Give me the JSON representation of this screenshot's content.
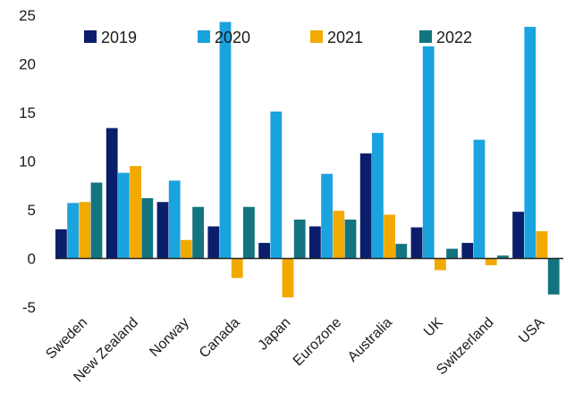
{
  "chart_data": {
    "type": "bar",
    "title": "",
    "xlabel": "",
    "ylabel": "",
    "ylim": [
      -5,
      25
    ],
    "yticks": [
      -5,
      0,
      5,
      10,
      15,
      20,
      25
    ],
    "grid": false,
    "legend": {
      "placement": "top"
    },
    "categories": [
      "Sweden",
      "New Zealand",
      "Norway",
      "Canada",
      "Japan",
      "Eurozone",
      "Australia",
      "UK",
      "Switzerland",
      "USA"
    ],
    "series": [
      {
        "name": "2019",
        "color": "#0b1e6b",
        "values": [
          3.0,
          13.4,
          5.8,
          3.3,
          1.6,
          3.3,
          10.8,
          3.2,
          1.6,
          4.8
        ]
      },
      {
        "name": "2020",
        "color": "#1aa3de",
        "values": [
          5.7,
          8.8,
          8.0,
          24.3,
          15.1,
          8.7,
          12.9,
          21.8,
          12.2,
          23.8
        ]
      },
      {
        "name": "2021",
        "color": "#f2a900",
        "values": [
          5.8,
          9.5,
          1.9,
          -2.0,
          -4.0,
          4.9,
          4.5,
          -1.2,
          -0.7,
          2.8
        ]
      },
      {
        "name": "2022",
        "color": "#137480",
        "values": [
          7.8,
          6.2,
          5.3,
          5.3,
          4.0,
          4.0,
          1.5,
          1.0,
          0.3,
          -3.7
        ]
      }
    ]
  }
}
